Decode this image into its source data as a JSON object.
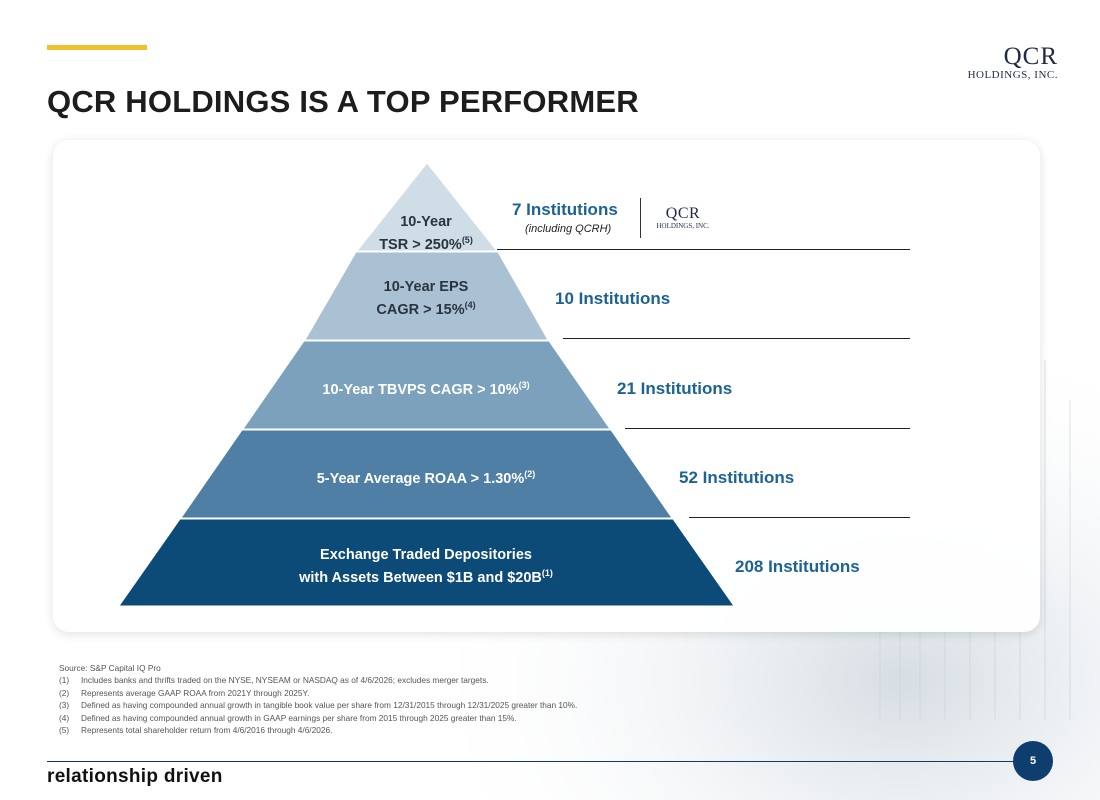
{
  "header": {
    "title": "QCR HOLDINGS IS A TOP PERFORMER",
    "logo_line1": "QCR",
    "logo_line2": "HOLDINGS, INC."
  },
  "pyramid": {
    "tiers": [
      {
        "line1": "10-Year",
        "line2": "TSR > 250%",
        "sup": "(5)",
        "color": "#cfdde7",
        "institutions": "7 Institutions",
        "note": "(including QCRH)"
      },
      {
        "line1": "10-Year EPS",
        "line2": "CAGR > 15%",
        "sup": "(4)",
        "color": "#a9c1d3",
        "institutions": "10 Institutions"
      },
      {
        "line1": "10-Year TBVPS CAGR > 10%",
        "sup": "(3)",
        "color": "#7ba1bd",
        "institutions": "21 Institutions"
      },
      {
        "line1": "5-Year Average ROAA > 1.30%",
        "sup": "(2)",
        "color": "#4f7fa4",
        "institutions": "52 Institutions"
      },
      {
        "line1": "Exchange Traded Depositories",
        "line2": "with Assets Between $1B and $20B",
        "sup": "(1)",
        "color": "#0c4a78",
        "institutions": "208 Institutions"
      }
    ],
    "mini_logo_line1": "QCR",
    "mini_logo_line2": "HOLDINGS, INC."
  },
  "notes": {
    "source": "Source: S&P Capital IQ Pro",
    "items": [
      {
        "num": "(1)",
        "text": "Includes banks and thrifts traded on the NYSE, NYSEAM or NASDAQ as of 4/6/2026; excludes merger targets."
      },
      {
        "num": "(2)",
        "text": "Represents average GAAP ROAA from 2021Y through 2025Y."
      },
      {
        "num": "(3)",
        "text": "Defined as having compounded annual growth in tangible book value per share from 12/31/2015 through 12/31/2025 greater than 10%."
      },
      {
        "num": "(4)",
        "text": "Defined as having compounded annual growth in GAAP earnings per share from 2015 through 2025 greater than 15%."
      },
      {
        "num": "(5)",
        "text": "Represents total shareholder return from 4/6/2016 through 4/6/2026."
      }
    ]
  },
  "footer": {
    "tagline": "relationship driven",
    "page_number": "5"
  }
}
